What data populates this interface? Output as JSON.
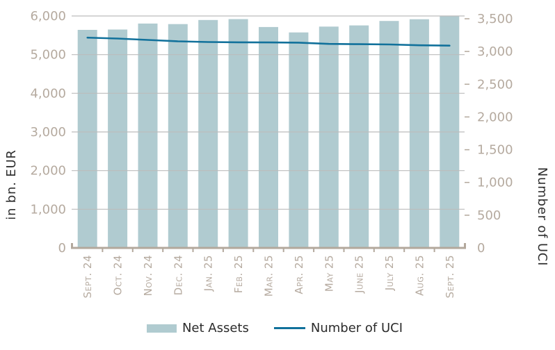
{
  "chart_data": {
    "type": "combo-bar-line",
    "title": "",
    "categories": [
      "Sept. 24",
      "Oct. 24",
      "Nov. 24",
      "Dec. 24",
      "Jan. 25",
      "Feb. 25",
      "Mar. 25",
      "Apr. 25",
      "May 25",
      "June 25",
      "July 25",
      "Aug. 25",
      "Sept. 25"
    ],
    "series": [
      {
        "name": "Net Assets",
        "type": "bar",
        "y_axis": "left",
        "color": "#b0cbd0",
        "values": [
          5640,
          5650,
          5805,
          5790,
          5895,
          5920,
          5715,
          5575,
          5725,
          5755,
          5870,
          5915,
          5995
        ]
      },
      {
        "name": "Number of UCI",
        "type": "line",
        "y_axis": "right",
        "color": "#11719b",
        "values": [
          3212,
          3198,
          3177,
          3155,
          3145,
          3140,
          3138,
          3135,
          3116,
          3112,
          3108,
          3095,
          3090
        ]
      }
    ],
    "left_axis": {
      "title": "in bn. EUR",
      "ylim": [
        0,
        6000
      ],
      "tick_step": 1000,
      "tick_labels": [
        "0",
        "1,000",
        "2,000",
        "3,000",
        "4,000",
        "5,000",
        "6,000"
      ]
    },
    "right_axis": {
      "title": "Number of UCI",
      "ylim": [
        0,
        3500
      ],
      "tick_step": 500,
      "tick_labels": [
        "0",
        "500",
        "1,000",
        "1,500",
        "2,000",
        "2,500",
        "3,000",
        "3,500"
      ]
    },
    "grid": true,
    "legend_position": "bottom",
    "axis_color": "#b3a89c",
    "tick_label_color": "#b5aa9f",
    "gridline_color": "#bcbcbc"
  }
}
